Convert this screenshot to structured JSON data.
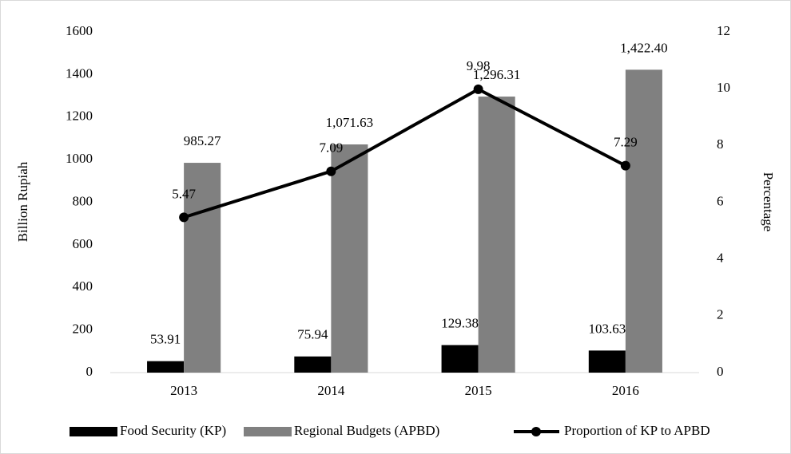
{
  "chart_data": {
    "type": "bar+line",
    "categories": [
      "2013",
      "2014",
      "2015",
      "2016"
    ],
    "series": [
      {
        "name": "Food Security (KP)",
        "type": "bar",
        "color": "#000000",
        "values": [
          53.91,
          75.94,
          129.38,
          103.63
        ]
      },
      {
        "name": "Regional Budgets (APBD)",
        "type": "bar",
        "color": "#808080",
        "values": [
          985.27,
          1071.63,
          1296.31,
          1422.4
        ],
        "value_labels": [
          "985.27",
          "1,071.63",
          "1,296.31",
          "1,422.40"
        ]
      },
      {
        "name": "Proportion of KP to APBD",
        "type": "line",
        "axis": "y2",
        "color": "#000000",
        "values": [
          5.47,
          7.09,
          9.98,
          7.29
        ]
      }
    ],
    "ylabel": "Billion Rupiah",
    "y2label": "Percentage",
    "ylim": [
      0,
      1600
    ],
    "yticks": [
      0,
      200,
      400,
      600,
      800,
      1000,
      1200,
      1400,
      1600
    ],
    "y2lim": [
      0,
      12
    ],
    "y2ticks": [
      0,
      2,
      4,
      6,
      8,
      10,
      12
    ],
    "grid": false,
    "legend": "bottom"
  }
}
